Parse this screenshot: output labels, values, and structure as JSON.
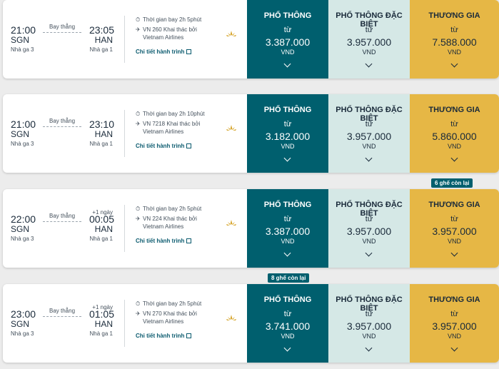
{
  "flights": [
    {
      "dep_time": "21:00",
      "dep_code": "SGN",
      "dep_terminal": "Nhà ga 3",
      "arr_time": "23:05",
      "arr_code": "HAN",
      "arr_terminal": "Nhà ga 1",
      "plus_day": "",
      "route": "Bay thẳng",
      "duration": "Thời gian bay 2h 5phút",
      "flight": "VN 260 Khai thác bởi Vietnam Airlines",
      "details": "Chi tiết hành trình",
      "fares": [
        {
          "name": "PHỔ THÔNG",
          "from": "từ",
          "price": "3.387.000",
          "currency": "VND"
        },
        {
          "name": "PHỔ THÔNG ĐẶC BIỆT",
          "from": "từ",
          "price": "3.957.000",
          "currency": "VND"
        },
        {
          "name": "THƯƠNG GIA",
          "from": "từ",
          "price": "7.588.000",
          "currency": "VND"
        }
      ]
    },
    {
      "dep_time": "21:00",
      "dep_code": "SGN",
      "dep_terminal": "Nhà ga 3",
      "arr_time": "23:10",
      "arr_code": "HAN",
      "arr_terminal": "Nhà ga 1",
      "plus_day": "",
      "route": "Bay thẳng",
      "duration": "Thời gian bay 2h 10phút",
      "flight": "VN 7218 Khai thác bởi Vietnam Airlines",
      "details": "Chi tiết hành trình",
      "fares": [
        {
          "name": "PHỔ THÔNG",
          "from": "từ",
          "price": "3.182.000",
          "currency": "VND"
        },
        {
          "name": "PHỔ THÔNG ĐẶC BIỆT",
          "from": "từ",
          "price": "3.957.000",
          "currency": "VND"
        },
        {
          "name": "THƯƠNG GIA",
          "from": "từ",
          "price": "5.860.000",
          "currency": "VND"
        }
      ]
    },
    {
      "dep_time": "22:00",
      "dep_code": "SGN",
      "dep_terminal": "Nhà ga 3",
      "arr_time": "00:05",
      "arr_code": "HAN",
      "arr_terminal": "Nhà ga 1",
      "plus_day": "+1 ngày",
      "route": "Bay thẳng",
      "duration": "Thời gian bay 2h 5phút",
      "flight": "VN 224 Khai thác bởi Vietnam Airlines",
      "details": "Chi tiết hành trình",
      "fares": [
        {
          "name": "PHỔ THÔNG",
          "from": "từ",
          "price": "3.387.000",
          "currency": "VND"
        },
        {
          "name": "PHỔ THÔNG ĐẶC BIỆT",
          "from": "từ",
          "price": "3.957.000",
          "currency": "VND"
        },
        {
          "name": "THƯƠNG GIA",
          "from": "từ",
          "price": "3.957.000",
          "currency": "VND"
        }
      ]
    },
    {
      "dep_time": "23:00",
      "dep_code": "SGN",
      "dep_terminal": "Nhà ga 3",
      "arr_time": "01:05",
      "arr_code": "HAN",
      "arr_terminal": "Nhà ga 1",
      "plus_day": "+1 ngày",
      "route": "Bay thẳng",
      "duration": "Thời gian bay 2h 5phút",
      "flight": "VN 270 Khai thác bởi Vietnam Airlines",
      "details": "Chi tiết hành trình",
      "fares": [
        {
          "name": "PHỔ THÔNG",
          "from": "từ",
          "price": "3.741.000",
          "currency": "VND"
        },
        {
          "name": "PHỔ THÔNG ĐẶC BIỆT",
          "from": "từ",
          "price": "3.957.000",
          "currency": "VND"
        },
        {
          "name": "THƯƠNG GIA",
          "from": "từ",
          "price": "3.957.000",
          "currency": "VND"
        }
      ]
    }
  ],
  "badges": {
    "business_seats_left": "6 ghế còn lại",
    "economy_seats_left": "8 ghế còn lại"
  },
  "colors": {
    "economy": "#005f6e",
    "premium": "#d5e8e6",
    "business": "#e6b745"
  },
  "icons": {
    "duration": "stopwatch-icon",
    "flight": "plane-icon",
    "airline": "lotus-logo-icon",
    "details": "external-link-icon",
    "expand": "chevron-down-icon"
  }
}
